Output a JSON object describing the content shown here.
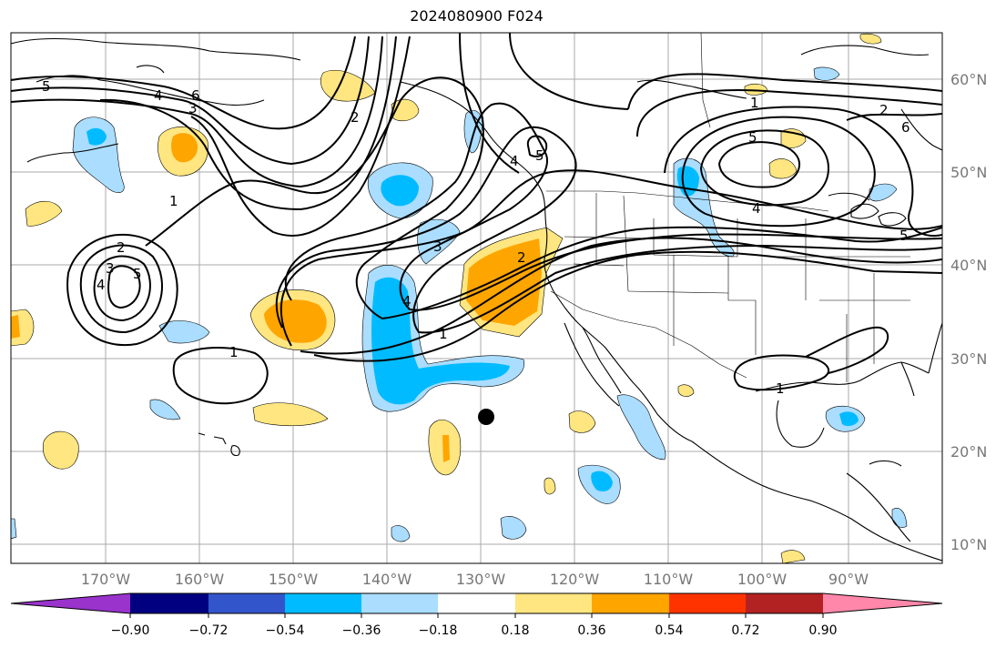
{
  "title": "2024080900 F024",
  "map": {
    "lon_labels": [
      "170°W",
      "160°W",
      "150°W",
      "140°W",
      "130°W",
      "120°W",
      "110°W",
      "100°W",
      "90°W"
    ],
    "lat_labels": [
      "60°N",
      "50°N",
      "40°N",
      "30°N",
      "20°N",
      "10°N"
    ],
    "contour_labels": [
      "5",
      "4",
      "6",
      "3",
      "2",
      "1",
      "2",
      "5",
      "4",
      "3",
      "1",
      "3",
      "4",
      "2",
      "1",
      "5",
      "4",
      "1",
      "2",
      "6",
      "5",
      "4",
      "5",
      "1"
    ],
    "marker": "station-dot"
  },
  "colorbar": {
    "colors": [
      "#9933cc",
      "#000080",
      "#3355cc",
      "#00bbff",
      "#aaddff",
      "#ffffff",
      "#ffe680",
      "#ffa500",
      "#ff3300",
      "#b22222",
      "#ff88aa"
    ],
    "tick_labels": [
      "−0.90",
      "−0.72",
      "−0.54",
      "−0.36",
      "−0.18",
      "0.18",
      "0.36",
      "0.54",
      "0.72",
      "0.90"
    ]
  }
}
